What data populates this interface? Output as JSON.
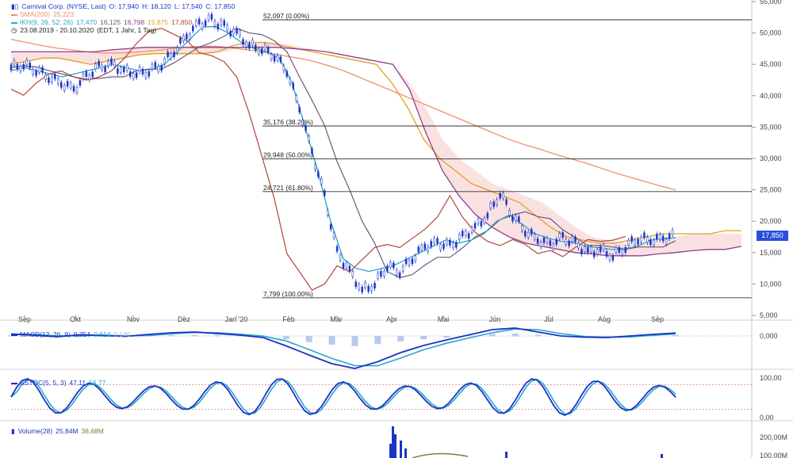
{
  "header": {
    "line1": "Carnival Corp. (NYSE, Last)",
    "open": "O: 17,940",
    "high": "H: 18,120",
    "low": "L: 17,540",
    "close": "C: 17,850",
    "sma_label": "SMA(200)",
    "sma_val": "25,223",
    "ikh_label": "IKH(9, 26, 52; 26)",
    "ikh_v1": "17,470",
    "ikh_v2": "16,125",
    "ikh_v3": "16,798",
    "ikh_v4": "15,875",
    "ikh_v5": "17,850",
    "range": "23.08.2019 - 20.10.2020",
    "range_note": "(EDT, 1 Jahr, 1 Tag)"
  },
  "price_tag": "17,850",
  "macd": {
    "label": "MACD(12, 26, 9)",
    "v1": "0,754",
    "v2": "0,614",
    "v3": "0,140"
  },
  "stoc": {
    "label": "SSTOC(5, 5, 3)",
    "v1": "47,11",
    "v2": "56,77"
  },
  "volume": {
    "label": "Volume(28)",
    "v1": "25,84M",
    "v2": "38,68M"
  },
  "colors": {
    "price": "#1a33c7",
    "sma": "#f0906a",
    "tenkan": "#29a6c9",
    "kijun": "#6c5a7a",
    "spanA": "#e0a020",
    "spanB": "#8e3f8e",
    "chikou": "#b0453a",
    "cloud": "#f6c9c9"
  },
  "chart_data": [
    {
      "type": "line",
      "title": "Carnival Corp. (NYSE, Last)",
      "x_ticks": [
        "Sep",
        "Okt",
        "Nov",
        "Dez",
        "Jan '20",
        "Feb",
        "Mär",
        "Apr",
        "Mai",
        "Jun",
        "Jul",
        "Aug",
        "Sep"
      ],
      "y_ticks": [
        "5,000",
        "10,000",
        "15,000",
        "20,000",
        "25,000",
        "30,000",
        "35,000",
        "40,000",
        "45,000",
        "50,000",
        "55,000"
      ],
      "ylim": [
        5,
        55
      ],
      "fib_levels": [
        {
          "value": 52.097,
          "label": "52,097 (0.00%)"
        },
        {
          "value": 35.176,
          "label": "35,176 (38.20%)"
        },
        {
          "value": 29.948,
          "label": "29,948 (50.00%)"
        },
        {
          "value": 24.721,
          "label": "24,721 (61.80%)"
        },
        {
          "value": 7.799,
          "label": "7,799 (100.00%)"
        }
      ],
      "series": [
        {
          "name": "Carnival Corp.",
          "values": [
            44.5,
            45,
            44.2,
            43,
            42,
            41,
            43,
            44.5,
            45,
            44,
            43.5,
            44,
            45,
            47,
            49.5,
            51.5,
            52,
            51,
            50,
            48,
            47.5,
            46.5,
            44,
            38,
            31,
            24,
            15,
            12,
            9,
            10,
            13,
            12,
            14,
            16,
            16.5,
            16,
            17.5,
            19,
            21,
            24.5,
            21,
            18.5,
            17,
            16.3,
            17.3,
            16.5,
            15,
            15.5,
            14.5,
            16,
            17.3,
            17,
            17.2,
            17.8
          ]
        },
        {
          "name": "SMA(200)",
          "values": [
            49,
            48.5,
            48,
            47.6,
            47.3,
            47,
            46.8,
            46.8,
            46.9,
            47.1,
            47.3,
            47.6,
            47.8,
            47.9,
            47.8,
            47.5,
            47.2,
            46.8,
            46.4,
            46,
            45.5,
            44.8,
            44,
            43,
            42,
            41,
            40,
            39,
            38,
            37,
            36,
            35,
            34,
            33,
            32.2,
            31.5,
            30.7,
            30,
            29.3,
            28.5,
            27.7,
            27,
            26.3,
            25.6,
            25
          ]
        },
        {
          "name": "Tenkan",
          "values": [
            44,
            44.5,
            44,
            43.5,
            43,
            43.5,
            44,
            44.5,
            45,
            44.5,
            44,
            44.2,
            45,
            47,
            49,
            51,
            51,
            50,
            48.5,
            47.5,
            47,
            46,
            42,
            35,
            28,
            20,
            14,
            12.5,
            12,
            12.5,
            13,
            14,
            15,
            16,
            17,
            16.5,
            17,
            18,
            20,
            21,
            19.5,
            18,
            17.3,
            16.8,
            16.6,
            16,
            15.8,
            15.5,
            15.6,
            16,
            17,
            17.2,
            17.4
          ]
        },
        {
          "name": "Span A",
          "values": [
            45,
            45.5,
            46,
            46,
            45.5,
            45,
            45.5,
            46,
            46.5,
            46.7,
            46.7,
            46.7,
            46.7,
            47,
            48,
            48.5,
            48.5,
            48,
            47.5,
            47,
            46.5,
            46,
            45.5,
            45,
            42,
            38,
            33,
            30,
            28,
            26,
            25,
            24,
            23,
            21,
            19,
            17.5,
            17,
            16.5,
            16.5,
            17,
            17.5,
            18,
            18,
            18,
            18,
            18.5,
            18.5
          ]
        },
        {
          "name": "Span B",
          "values": [
            47,
            47,
            47,
            47,
            47,
            47,
            47.3,
            47.5,
            47.7,
            47.7,
            47.7,
            47.7,
            47.7,
            47.7,
            47.7,
            47.7,
            47.7,
            47.5,
            47.3,
            47,
            46.5,
            46,
            45.5,
            45,
            41,
            34,
            28,
            24,
            21,
            19,
            17.5,
            16.5,
            16,
            15.5,
            15,
            14.8,
            14.5,
            14.5,
            14.5,
            14.8,
            15,
            15.3,
            15.5,
            15.5,
            16
          ]
        }
      ]
    },
    {
      "type": "line",
      "title": "MACD(12, 26, 9)",
      "y_ticks": [
        "0,000"
      ],
      "series": [
        {
          "name": "MACD",
          "values": [
            0.5,
            0.2,
            -0.2,
            0.3,
            0.1,
            -0.1,
            0.4,
            0.8,
            1.0,
            0.6,
            0.2,
            -0.4,
            -2.5,
            -4.8,
            -7.0,
            -8.2,
            -6.5,
            -4.2,
            -2.4,
            -1.0,
            0.3,
            1.6,
            2.0,
            1.0,
            0.0,
            -0.3,
            -0.4,
            0.0,
            0.4,
            0.75
          ]
        }
      ]
    },
    {
      "type": "line",
      "title": "SSTOC(5, 5, 3)",
      "y_ticks": [
        "100,00",
        "0,00"
      ]
    },
    {
      "type": "bar",
      "title": "Volume(28)",
      "y_ticks": [
        "200,00M",
        "100,00M"
      ]
    }
  ]
}
